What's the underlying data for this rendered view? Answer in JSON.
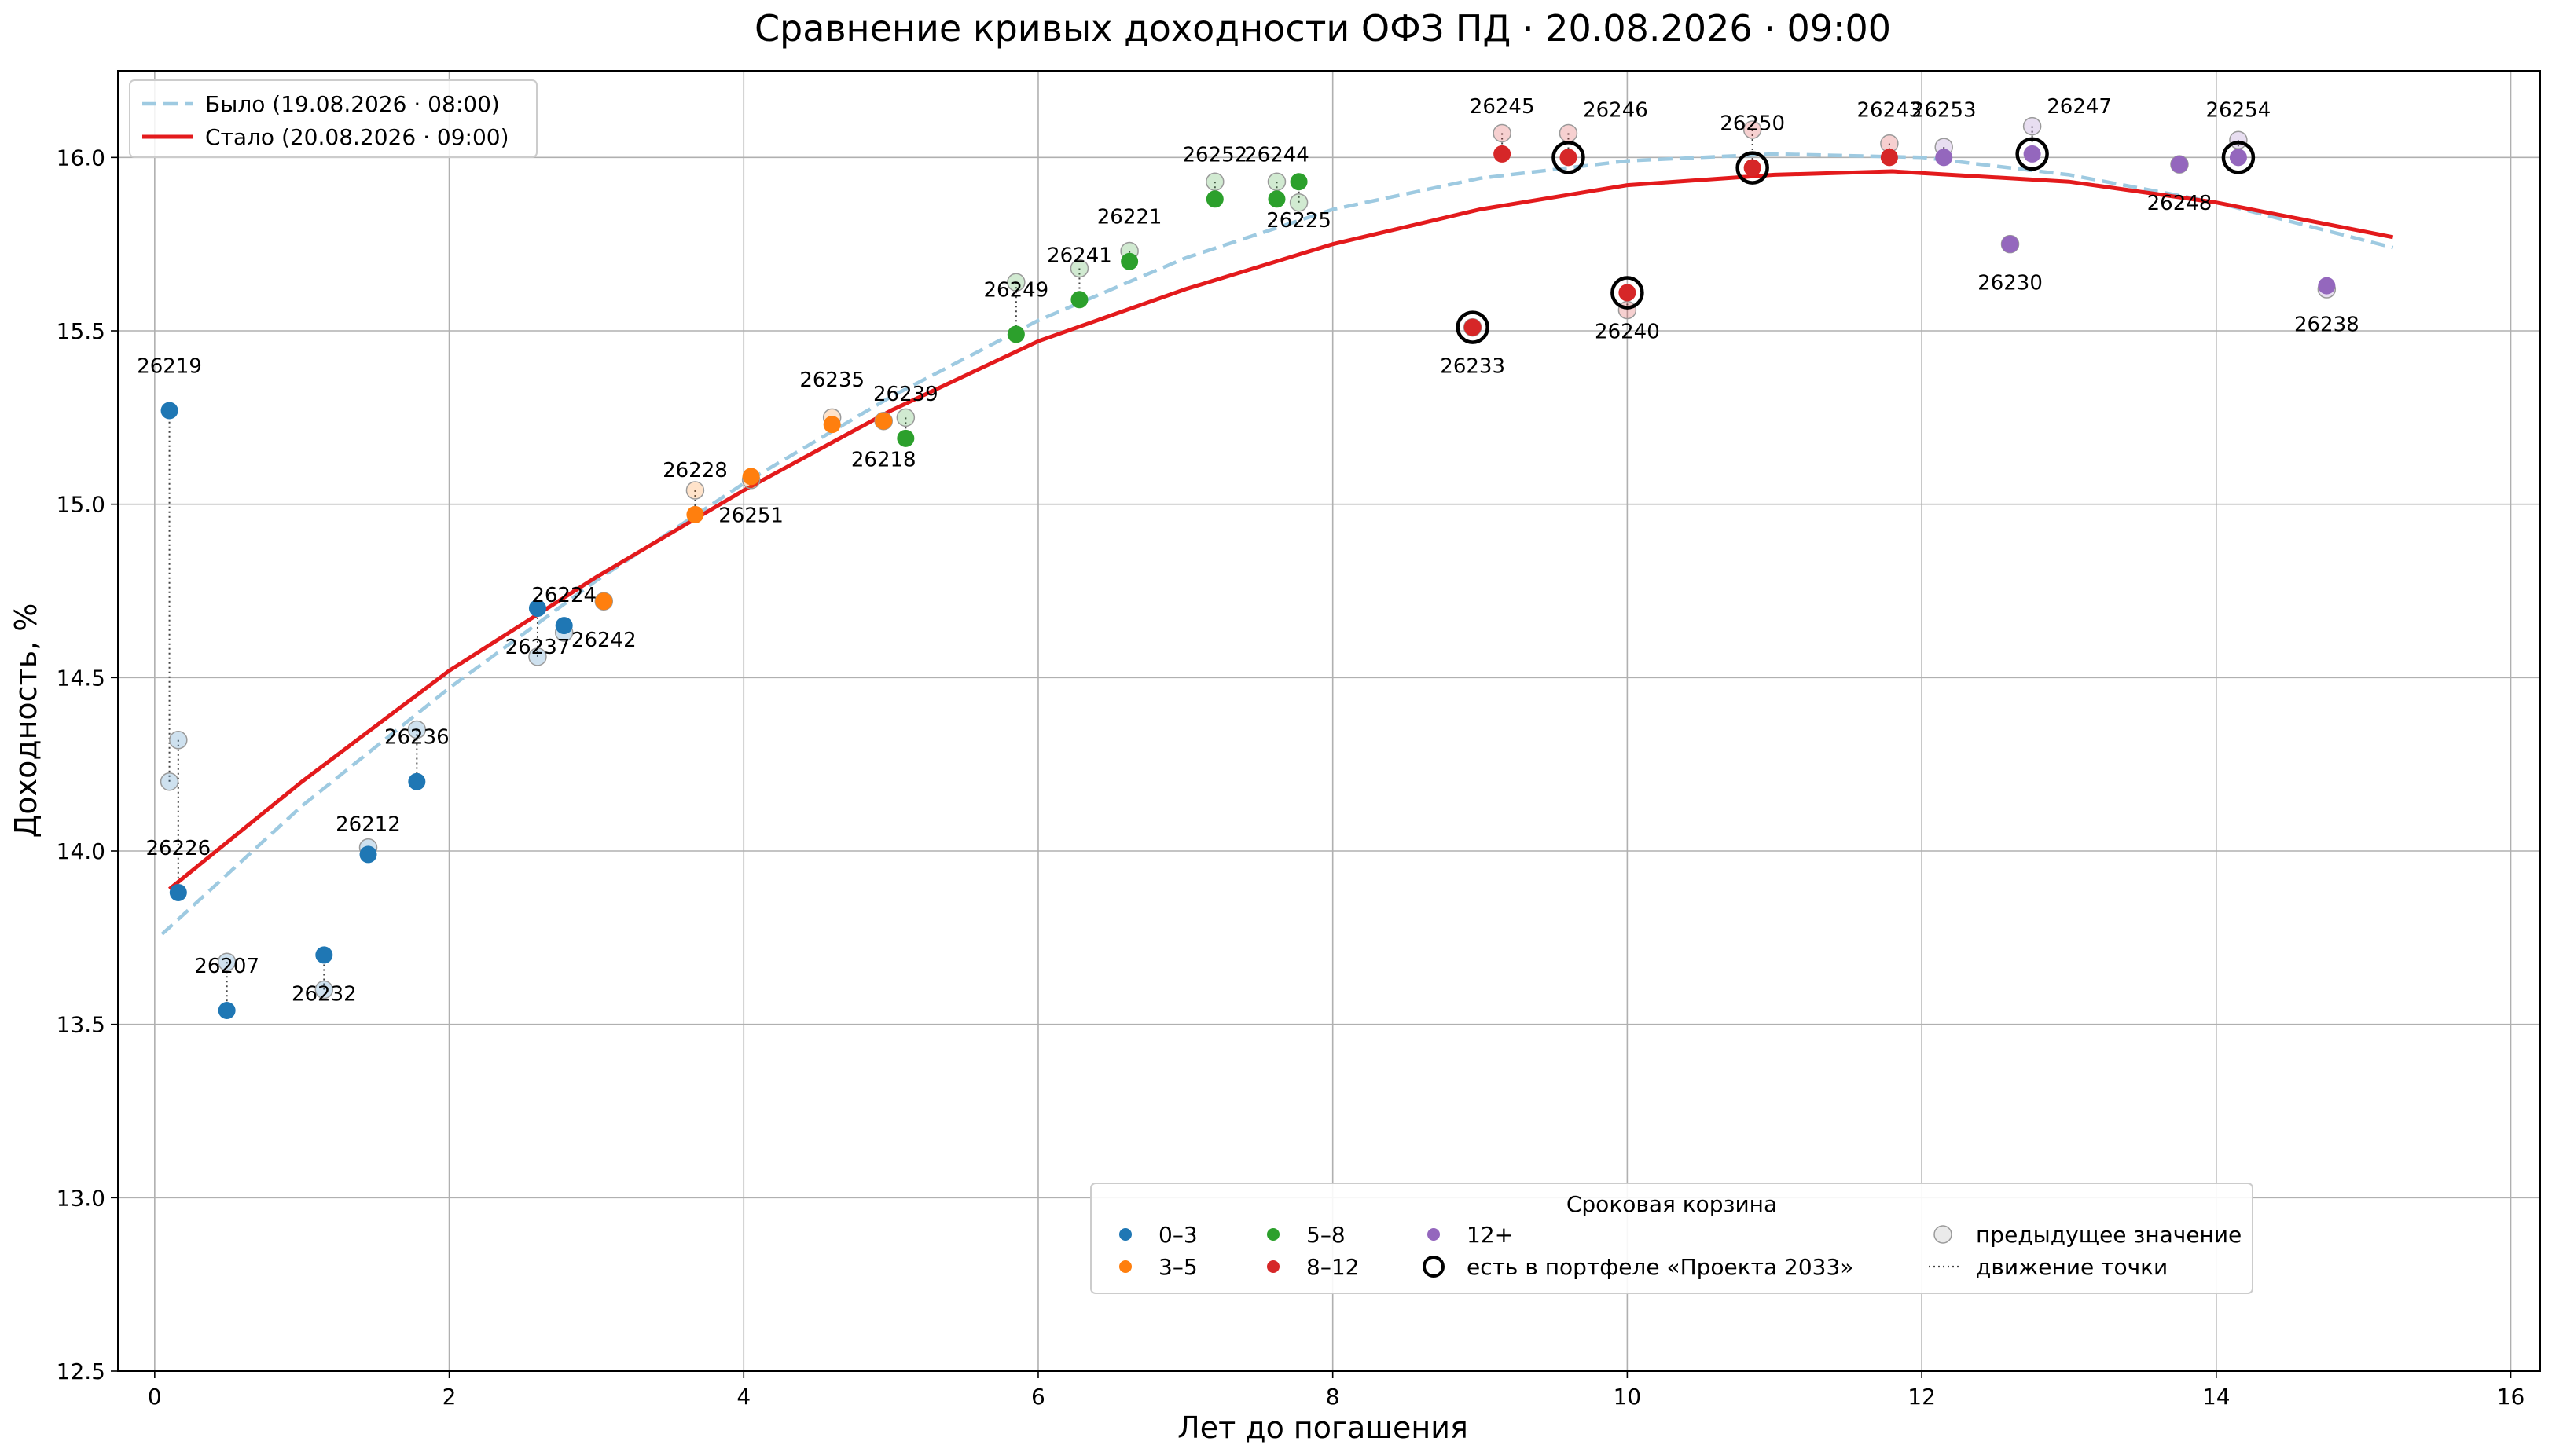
{
  "chart_data": {
    "type": "scatter",
    "title": "Сравнение кривых доходности ОФЗ ПД · 20.08.2026 · 09:00",
    "xlabel": "Лет до погашения",
    "ylabel": "Доходность, %",
    "xlim": [
      -0.25,
      16.2
    ],
    "ylim": [
      12.5,
      16.25
    ],
    "x_ticks": [
      0,
      2,
      4,
      6,
      8,
      10,
      12,
      14,
      16
    ],
    "y_ticks": [
      12.5,
      13.0,
      13.5,
      14.0,
      14.5,
      15.0,
      15.5,
      16.0
    ],
    "grid": true,
    "bucket_colors": {
      "0–3": "#1f77b4",
      "3–5": "#ff7f0e",
      "5–8": "#2ca02c",
      "8–12": "#d62728",
      "12+": "#9467bd"
    },
    "curves": [
      {
        "name": "Было (19.08.2026 · 08:00)",
        "style": "dashed",
        "color": "#9ecae1",
        "x": [
          0.05,
          1,
          2,
          3,
          4,
          5,
          6,
          7,
          8,
          9,
          10,
          11,
          12,
          13,
          14,
          15.2
        ],
        "y": [
          13.76,
          14.13,
          14.47,
          14.78,
          15.06,
          15.31,
          15.53,
          15.71,
          15.85,
          15.94,
          15.99,
          16.01,
          16.0,
          15.95,
          15.87,
          15.74
        ]
      },
      {
        "name": "Стало (20.08.2026 · 09:00)",
        "style": "solid",
        "color": "#e31a1c",
        "x": [
          0.1,
          1,
          2,
          3,
          4,
          5,
          6,
          7,
          8,
          9,
          10,
          11,
          11.8,
          13,
          14,
          15.2
        ],
        "y": [
          13.89,
          14.2,
          14.52,
          14.79,
          15.04,
          15.27,
          15.47,
          15.62,
          15.75,
          15.85,
          15.92,
          15.95,
          15.96,
          15.93,
          15.87,
          15.77
        ]
      }
    ],
    "points": [
      {
        "label": "26219",
        "x": 0.1,
        "y": 15.27,
        "prev": 14.2,
        "bucket": "0–3",
        "portfolio": false
      },
      {
        "label": "26226",
        "x": 0.16,
        "y": 13.88,
        "prev": 14.32,
        "bucket": "0–3",
        "portfolio": false
      },
      {
        "label": "26207",
        "x": 0.49,
        "y": 13.54,
        "prev": 13.68,
        "bucket": "0–3",
        "portfolio": false
      },
      {
        "label": "26232",
        "x": 1.15,
        "y": 13.7,
        "prev": 13.6,
        "bucket": "0–3",
        "portfolio": false
      },
      {
        "label": "26212",
        "x": 1.45,
        "y": 13.99,
        "prev": 14.01,
        "bucket": "0–3",
        "portfolio": false
      },
      {
        "label": "26236",
        "x": 1.78,
        "y": 14.2,
        "prev": 14.35,
        "bucket": "0–3",
        "portfolio": false
      },
      {
        "label": "26237",
        "x": 2.6,
        "y": 14.7,
        "prev": 14.56,
        "bucket": "0–3",
        "portfolio": false
      },
      {
        "label": "26224",
        "x": 2.78,
        "y": 14.65,
        "prev": 14.63,
        "bucket": "0–3",
        "portfolio": false
      },
      {
        "label": "26242",
        "x": 3.05,
        "y": 14.72,
        "prev": 14.72,
        "bucket": "3–5",
        "portfolio": false
      },
      {
        "label": "26228",
        "x": 3.67,
        "y": 14.97,
        "prev": 15.04,
        "bucket": "3–5",
        "portfolio": false
      },
      {
        "label": "26251",
        "x": 4.05,
        "y": 15.08,
        "prev": 15.07,
        "bucket": "3–5",
        "portfolio": false
      },
      {
        "label": "26235",
        "x": 4.6,
        "y": 15.23,
        "prev": 15.25,
        "bucket": "3–5",
        "portfolio": false
      },
      {
        "label": "26218",
        "x": 4.95,
        "y": 15.24,
        "prev": 15.24,
        "bucket": "3–5",
        "portfolio": false
      },
      {
        "label": "26239",
        "x": 5.1,
        "y": 15.19,
        "prev": 15.25,
        "bucket": "5–8",
        "portfolio": false
      },
      {
        "label": "26249",
        "x": 5.85,
        "y": 15.49,
        "prev": 15.64,
        "bucket": "5–8",
        "portfolio": false
      },
      {
        "label": "26241",
        "x": 6.28,
        "y": 15.59,
        "prev": 15.68,
        "bucket": "5–8",
        "portfolio": false
      },
      {
        "label": "26221",
        "x": 6.62,
        "y": 15.7,
        "prev": 15.73,
        "bucket": "5–8",
        "portfolio": false
      },
      {
        "label": "26252",
        "x": 7.2,
        "y": 15.88,
        "prev": 15.93,
        "bucket": "5–8",
        "portfolio": false
      },
      {
        "label": "26244",
        "x": 7.62,
        "y": 15.88,
        "prev": 15.93,
        "bucket": "5–8",
        "portfolio": false
      },
      {
        "label": "26225",
        "x": 7.77,
        "y": 15.93,
        "prev": 15.87,
        "bucket": "5–8",
        "portfolio": false
      },
      {
        "label": "26233",
        "x": 8.95,
        "y": 15.51,
        "prev": 15.51,
        "bucket": "8–12",
        "portfolio": true
      },
      {
        "label": "26245",
        "x": 9.15,
        "y": 16.01,
        "prev": 16.07,
        "bucket": "8–12",
        "portfolio": false
      },
      {
        "label": "26246",
        "x": 9.6,
        "y": 16.0,
        "prev": 16.07,
        "bucket": "8–12",
        "portfolio": true
      },
      {
        "label": "26240",
        "x": 10.0,
        "y": 15.61,
        "prev": 15.56,
        "bucket": "8–12",
        "portfolio": true
      },
      {
        "label": "26250",
        "x": 10.85,
        "y": 15.97,
        "prev": 16.08,
        "bucket": "8–12",
        "portfolio": true
      },
      {
        "label": "26243",
        "x": 11.78,
        "y": 16.0,
        "prev": 16.04,
        "bucket": "8–12",
        "portfolio": false
      },
      {
        "label": "26253",
        "x": 12.15,
        "y": 16.0,
        "prev": 16.03,
        "bucket": "12+",
        "portfolio": false
      },
      {
        "label": "26230",
        "x": 12.6,
        "y": 15.75,
        "prev": 15.75,
        "bucket": "12+",
        "portfolio": false
      },
      {
        "label": "26247",
        "x": 12.75,
        "y": 16.01,
        "prev": 16.09,
        "bucket": "12+",
        "portfolio": true
      },
      {
        "label": "26248",
        "x": 13.75,
        "y": 15.98,
        "prev": 15.98,
        "bucket": "12+",
        "portfolio": false
      },
      {
        "label": "26254",
        "x": 14.15,
        "y": 16.0,
        "prev": 16.05,
        "bucket": "12+",
        "portfolio": true
      },
      {
        "label": "26238",
        "x": 14.75,
        "y": 15.63,
        "prev": 15.62,
        "bucket": "12+",
        "portfolio": false
      }
    ],
    "legend_curves": {
      "placement": "top-left",
      "entries": [
        "Было (19.08.2026 · 08:00)",
        "Стало (20.08.2026 · 09:00)"
      ]
    },
    "legend_buckets": {
      "placement": "bottom-center",
      "title": "Сроковая корзина",
      "entries": [
        "0–3",
        "3–5",
        "5–8",
        "8–12",
        "12+",
        "есть в портфеле «Проекта 2033»",
        "предыдущее значение",
        "движение точки"
      ]
    }
  }
}
